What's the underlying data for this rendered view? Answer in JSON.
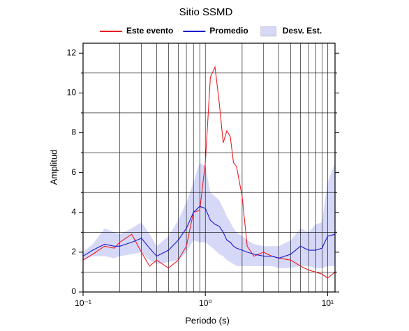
{
  "chart_data": {
    "type": "line",
    "title": "Sitio SSMD",
    "xlabel": "Periodo (s)",
    "ylabel": "Amplitud",
    "xscale": "log",
    "xlim": [
      0.1,
      11.5
    ],
    "ylim": [
      0,
      12.5
    ],
    "xticks": [
      {
        "value": 0.1,
        "label": "10⁻¹"
      },
      {
        "value": 1,
        "label": "10⁰"
      },
      {
        "value": 10,
        "label": "10¹"
      }
    ],
    "xgrid": [
      0.1,
      0.2,
      0.3,
      0.4,
      0.5,
      0.6,
      0.7,
      0.8,
      0.9,
      1,
      2,
      3,
      4,
      5,
      6,
      7,
      8,
      9,
      10
    ],
    "yticks": [
      0,
      2,
      4,
      6,
      8,
      10,
      12
    ],
    "ygrid": [
      1,
      3,
      5,
      7,
      9,
      11
    ],
    "legend": "top",
    "x": [
      0.1,
      0.12,
      0.15,
      0.18,
      0.2,
      0.25,
      0.3,
      0.35,
      0.4,
      0.5,
      0.6,
      0.7,
      0.8,
      0.9,
      1.0,
      1.1,
      1.2,
      1.3,
      1.4,
      1.5,
      1.6,
      1.7,
      1.8,
      2.0,
      2.2,
      2.5,
      3,
      3.5,
      4,
      5,
      6,
      7,
      8,
      9,
      10,
      11.5
    ],
    "band": {
      "name": "Desv. Est.",
      "color": "#d6d8f8",
      "upper": [
        2.0,
        2.4,
        3.2,
        3.0,
        2.9,
        3.2,
        3.5,
        2.9,
        2.3,
        2.8,
        3.6,
        4.5,
        5.5,
        6.5,
        6.3,
        5.0,
        4.8,
        4.6,
        4.2,
        3.8,
        3.5,
        3.2,
        3.0,
        2.8,
        2.6,
        2.4,
        2.3,
        2.3,
        2.3,
        2.6,
        3.2,
        3.0,
        3.4,
        3.5,
        5.5,
        6.5
      ],
      "lower": [
        1.6,
        1.8,
        1.8,
        1.7,
        1.8,
        1.9,
        2.0,
        1.6,
        1.4,
        1.5,
        1.6,
        2.0,
        2.6,
        2.5,
        2.5,
        2.3,
        2.1,
        1.9,
        1.8,
        1.6,
        1.5,
        1.4,
        1.3,
        1.3,
        1.3,
        1.3,
        1.3,
        1.3,
        1.2,
        1.2,
        1.3,
        1.3,
        1.2,
        1.2,
        1.3,
        1.3
      ]
    },
    "series": [
      {
        "name": "Este evento",
        "color": "#ee1c24",
        "values": [
          1.6,
          1.9,
          2.3,
          2.2,
          2.5,
          2.9,
          2.0,
          1.3,
          1.6,
          1.2,
          1.6,
          2.3,
          4.0,
          4.1,
          6.5,
          10.8,
          11.3,
          9.5,
          7.5,
          8.1,
          7.8,
          6.5,
          6.3,
          4.8,
          2.3,
          1.8,
          2.0,
          1.8,
          1.7,
          1.6,
          1.3,
          1.1,
          1.0,
          0.9,
          0.7,
          1.0
        ]
      },
      {
        "name": "Promedio",
        "color": "#1a1ad0",
        "values": [
          1.8,
          2.1,
          2.4,
          2.3,
          2.3,
          2.5,
          2.7,
          2.2,
          1.8,
          2.1,
          2.6,
          3.2,
          4.0,
          4.3,
          4.2,
          3.6,
          3.4,
          3.3,
          3.0,
          2.6,
          2.5,
          2.3,
          2.2,
          2.1,
          2.0,
          1.9,
          1.8,
          1.8,
          1.7,
          1.9,
          2.3,
          2.1,
          2.1,
          2.2,
          2.8,
          2.9
        ]
      }
    ]
  }
}
